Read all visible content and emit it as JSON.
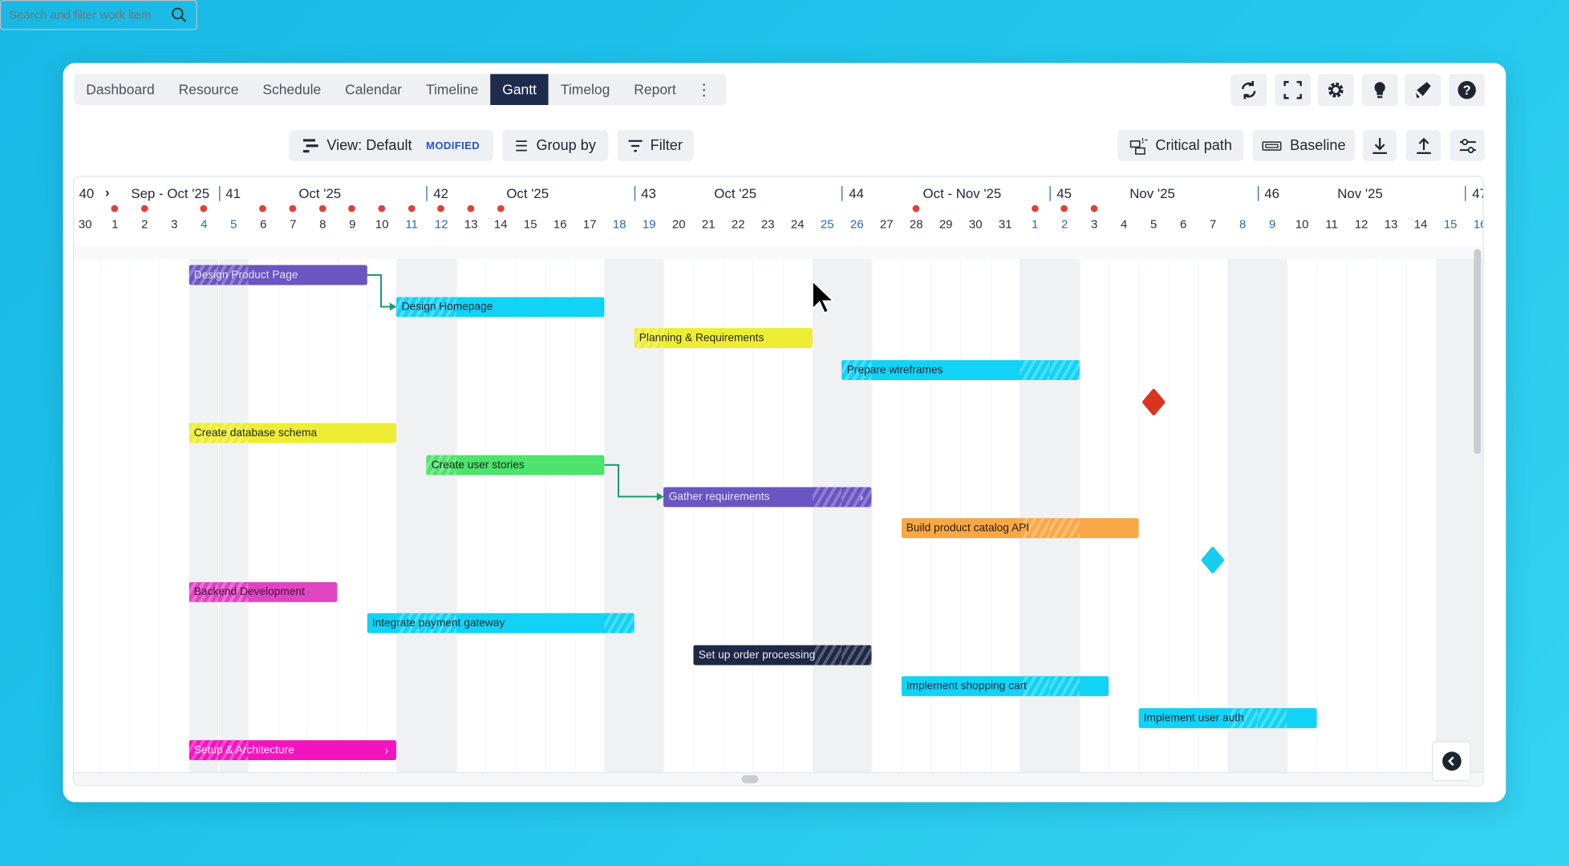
{
  "nav": {
    "tabs": [
      {
        "label": "Dashboard",
        "active": false
      },
      {
        "label": "Resource",
        "active": false
      },
      {
        "label": "Schedule",
        "active": false
      },
      {
        "label": "Calendar",
        "active": false
      },
      {
        "label": "Timeline",
        "active": false
      },
      {
        "label": "Gantt",
        "active": true
      },
      {
        "label": "Timelog",
        "active": false
      },
      {
        "label": "Report",
        "active": false
      }
    ],
    "more_icon": "kebab-icon",
    "icon_buttons": [
      "refresh-icon",
      "fullscreen-icon",
      "settings-icon",
      "lightbulb-icon",
      "announcement-icon",
      "help-icon"
    ]
  },
  "toolbar": {
    "search_placeholder": "Search and filter work item",
    "search_value": "",
    "view_label": "View: Default",
    "view_badge": "MODIFIED",
    "group_by_label": "Group by",
    "filter_label": "Filter",
    "critical_path_label": "Critical path",
    "baseline_label": "Baseline"
  },
  "timeline": {
    "weeks": [
      {
        "number": "40",
        "month": "Sep - Oct '25"
      },
      {
        "number": "41",
        "month": "Oct '25"
      },
      {
        "number": "42",
        "month": "Oct '25"
      },
      {
        "number": "43",
        "month": "Oct '25"
      },
      {
        "number": "44",
        "month": "Oct - Nov '25"
      },
      {
        "number": "45",
        "month": "Nov '25"
      },
      {
        "number": "46",
        "month": "Nov '25"
      },
      {
        "number": "47",
        "month": ""
      }
    ],
    "days": [
      "30",
      "1",
      "2",
      "3",
      "4",
      "5",
      "6",
      "7",
      "8",
      "9",
      "10",
      "11",
      "12",
      "13",
      "14",
      "15",
      "16",
      "17",
      "18",
      "19",
      "20",
      "21",
      "22",
      "23",
      "24",
      "25",
      "26",
      "27",
      "28",
      "29",
      "30",
      "31",
      "1",
      "2",
      "3",
      "4",
      "5",
      "6",
      "7",
      "8",
      "9",
      "10",
      "11",
      "12",
      "13",
      "14",
      "15",
      "16"
    ],
    "weekend_days": [
      4,
      5,
      11,
      12,
      18,
      19,
      25,
      26,
      32,
      33,
      39,
      40,
      46,
      47
    ],
    "marked_days": [
      1,
      2,
      4,
      6,
      7,
      8,
      9,
      10,
      11,
      12,
      13,
      14,
      28,
      32,
      33,
      34
    ]
  },
  "colors": {
    "accent": "#1d2b4c",
    "dependency": "#1f9a6c",
    "marker": "#d9433a",
    "weekend": "#f0f1f3"
  },
  "tasks": [
    {
      "name": "Design Product Page",
      "start": "2025-10-04",
      "end": "2025-10-09",
      "color": "#6a55c2",
      "text": "#e6e2fa"
    },
    {
      "name": "Design Homepage",
      "start": "2025-10-11",
      "end": "2025-10-17",
      "color": "#12d3f5",
      "text": "#1e2a3a"
    },
    {
      "name": "Planning & Requirements",
      "start": "2025-10-19",
      "end": "2025-10-24",
      "color": "#eeed35",
      "text": "#2a2a1a"
    },
    {
      "name": "Prepare wireframes",
      "start": "2025-10-26",
      "end": "2025-11-02",
      "color": "#12d3f5",
      "text": "#1e2a3a"
    },
    {
      "name": "",
      "milestone": true,
      "date": "2025-11-05",
      "color": "#d8351e"
    },
    {
      "name": "Create database schema",
      "start": "2025-10-04",
      "end": "2025-10-10",
      "color": "#eeed35",
      "text": "#2a2a1a"
    },
    {
      "name": "Create user stories",
      "start": "2025-10-12",
      "end": "2025-10-17",
      "color": "#4ee36c",
      "text": "#1a2a1e"
    },
    {
      "name": "Gather requirements",
      "start": "2025-10-20",
      "end": "2025-10-26",
      "color": "#6a55c2",
      "text": "#e6e2fa",
      "expandable": true
    },
    {
      "name": "Build product catalog API",
      "start": "2025-10-28",
      "end": "2025-11-04",
      "color": "#f9a847",
      "text": "#2a2010"
    },
    {
      "name": "",
      "milestone": true,
      "date": "2025-11-07",
      "color": "#18ccf0"
    },
    {
      "name": "Backend Development",
      "start": "2025-10-04",
      "end": "2025-10-08",
      "color": "#de46c0",
      "text": "#4a1040"
    },
    {
      "name": "Integrate payment gateway",
      "start": "2025-10-10",
      "end": "2025-10-18",
      "color": "#12d3f5",
      "text": "#1e2a3a"
    },
    {
      "name": "Set up order processing",
      "start": "2025-10-21",
      "end": "2025-10-26",
      "color": "#1d2746",
      "text": "#e8ecf5"
    },
    {
      "name": "Implement shopping cart",
      "start": "2025-10-28",
      "end": "2025-11-03",
      "color": "#12d3f5",
      "text": "#1e2a3a"
    },
    {
      "name": "Implement user auth",
      "start": "2025-11-05",
      "end": "2025-11-10",
      "color": "#12d3f5",
      "text": "#1e2a3a"
    },
    {
      "name": "Setup & Architecture",
      "start": "2025-10-04",
      "end": "2025-10-10",
      "color": "#f414be",
      "text": "#ffe0f5",
      "expandable": true
    }
  ],
  "dependencies": [
    {
      "from": "Design Product Page",
      "to": "Design Homepage"
    },
    {
      "from": "Create user stories",
      "to": "Gather requirements"
    }
  ]
}
